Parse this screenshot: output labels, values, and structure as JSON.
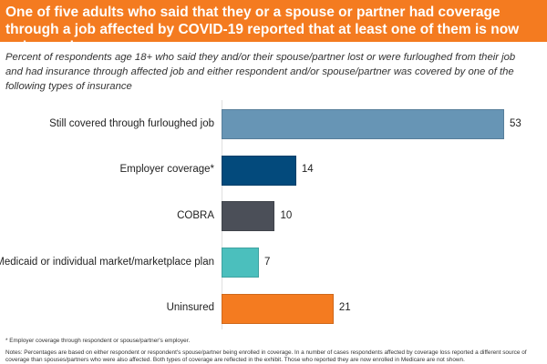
{
  "header": {
    "title": "One of five adults who said that they or a spouse or partner had coverage through a job affected by COVID-19 reported that at least one of them is now uninsured."
  },
  "chart_data": {
    "type": "bar",
    "orientation": "horizontal",
    "title": "One of five adults who said that they or a spouse or partner had coverage through a job affected by COVID-19 reported that at least one of them is now uninsured.",
    "subtitle": "Percent of respondents age 18+ who said they and/or their spouse/partner lost or were furloughed from their job and had insurance through affected job and either respondent and/or spouse/partner was covered by one of the following types of insurance",
    "categories": [
      "Still covered through furloughed job",
      "Employer coverage*",
      "COBRA",
      "Medicaid or individual market/marketplace plan",
      "Uninsured"
    ],
    "values": [
      53,
      14,
      10,
      7,
      21
    ],
    "colors": [
      "#6795b5",
      "#034a7c",
      "#4b4f58",
      "#4bbfbd",
      "#f47b20"
    ],
    "xlim": [
      0,
      53
    ],
    "grid": false
  },
  "footnotes": {
    "asterisk": "* Employer coverage through respondent or spouse/partner's employer.",
    "notes": "Notes: Percentages are based on either respondent or respondent's spouse/partner being enrolled in coverage. In a number of cases respondents affected by coverage loss reported a different source of coverage than spouses/partners who were also affected. Both types of coverage are reflected in the exhibit. Those who reported they are now enrolled in Medicare are not shown."
  }
}
